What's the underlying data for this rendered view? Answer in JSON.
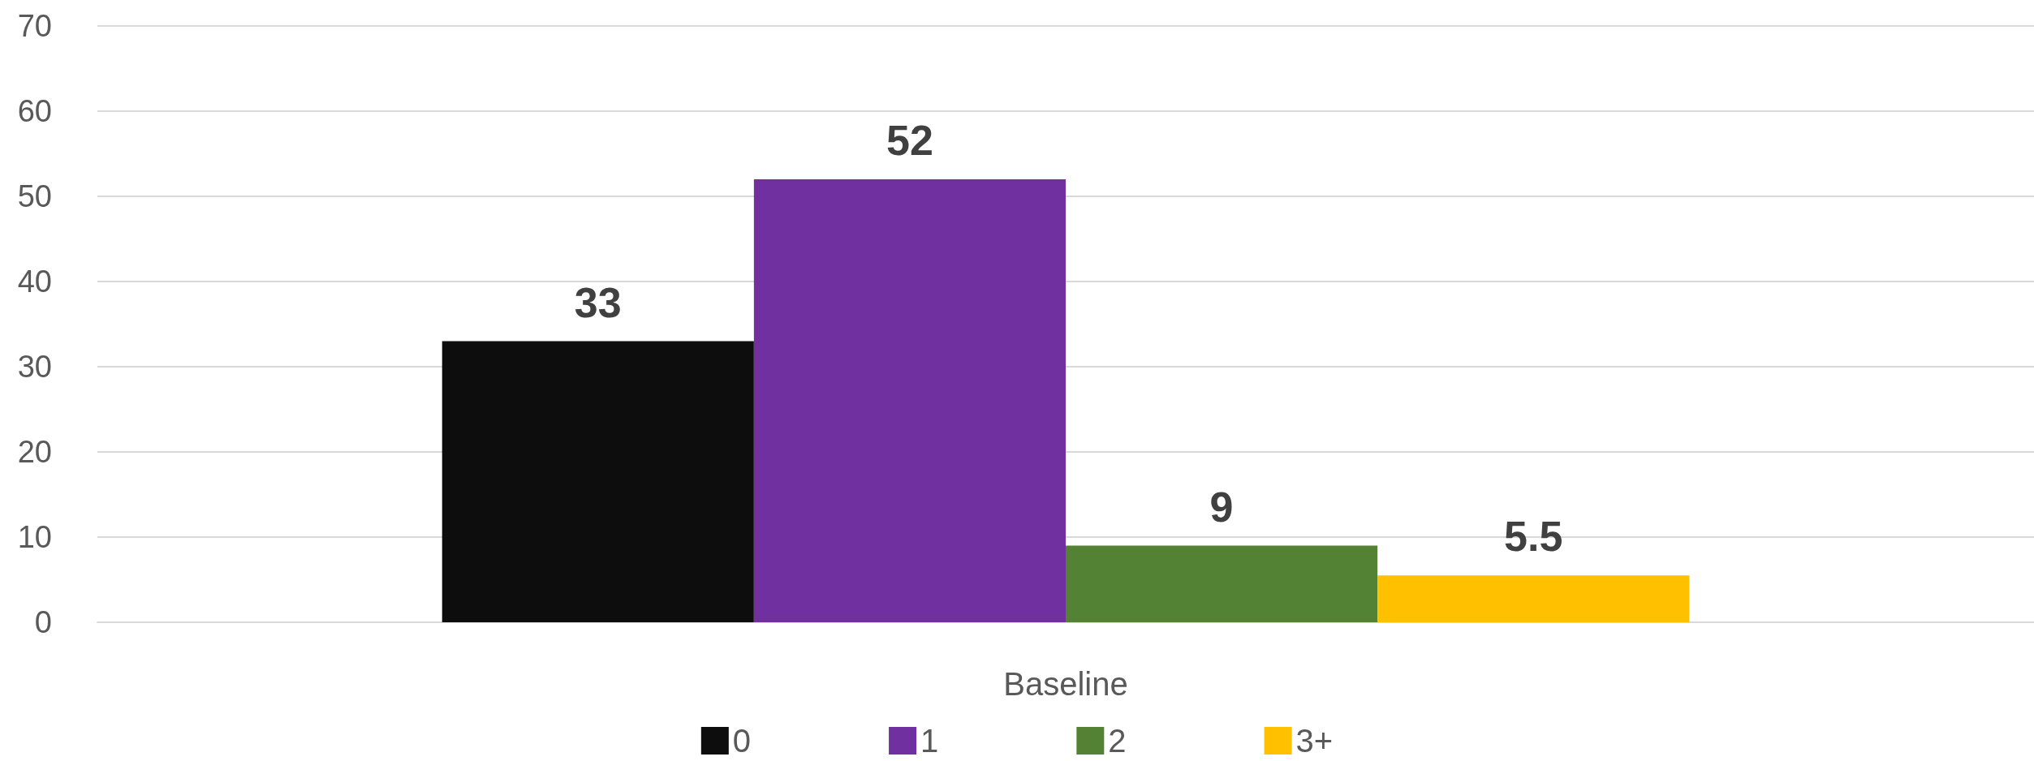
{
  "chart_data": {
    "type": "bar",
    "categories": [
      "Baseline"
    ],
    "series": [
      {
        "name": "0",
        "color": "#0d0d0d",
        "values": [
          33
        ]
      },
      {
        "name": "1",
        "color": "#7030a0",
        "values": [
          52
        ]
      },
      {
        "name": "2",
        "color": "#548235",
        "values": [
          9
        ]
      },
      {
        "name": "3+",
        "color": "#ffc000",
        "values": [
          5.5
        ]
      }
    ],
    "ylim": [
      0,
      70
    ],
    "yticks": [
      0,
      10,
      20,
      30,
      40,
      50,
      60,
      70
    ],
    "grid": "y",
    "legend": "bottom",
    "data_labels": true
  }
}
